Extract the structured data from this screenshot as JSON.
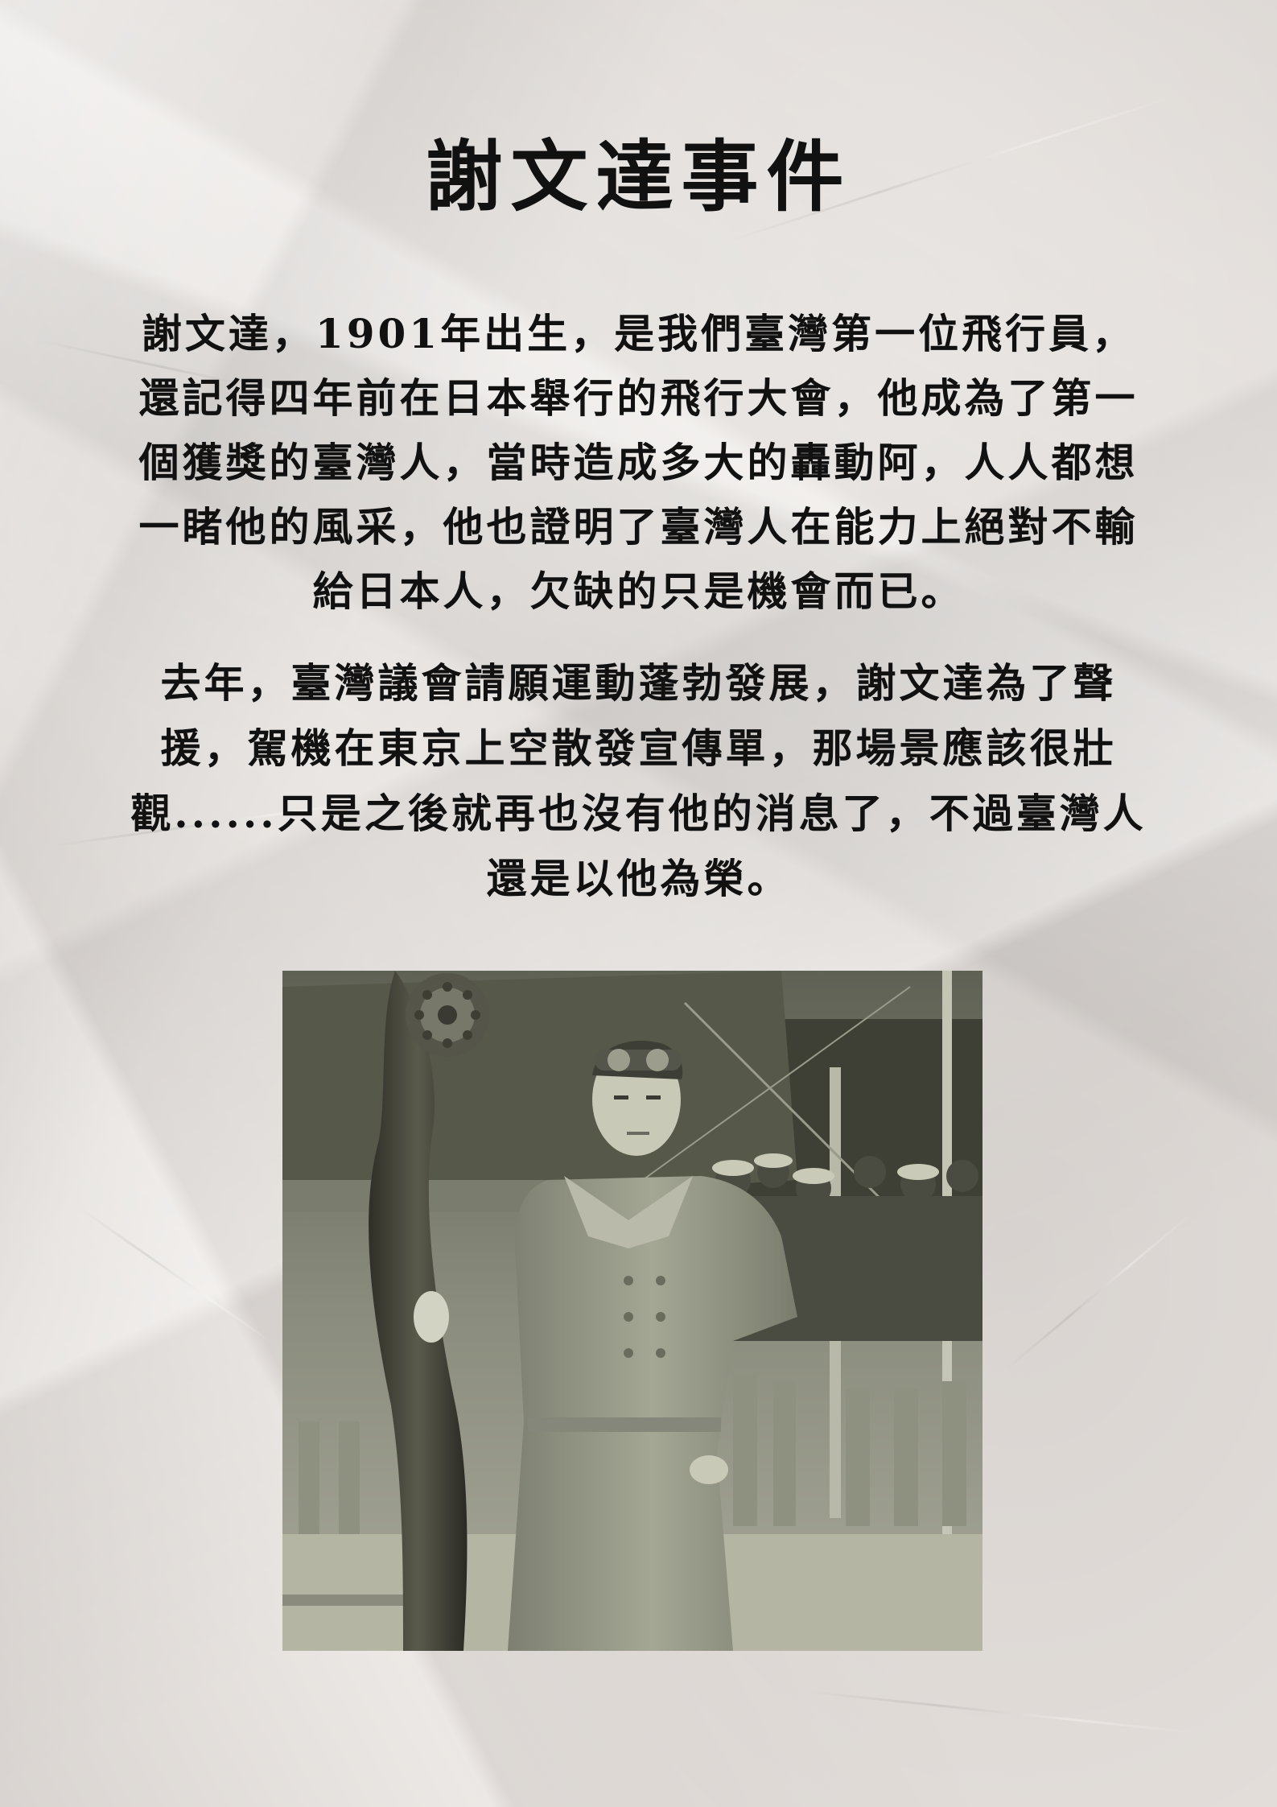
{
  "title": "謝文達事件",
  "paragraphs": [
    "謝文達，1901年出生，是我們臺灣第一位飛行員，還記得四年前在日本舉行的飛行大會，他成為了第一個獲獎的臺灣人，當時造成多大的轟動阿，人人都想一睹他的風采，他也證明了臺灣人在能力上絕對不輸給日本人，欠缺的只是機會而已。",
    "去年，臺灣議會請願運動蓬勃發展，謝文達為了聲援，駕機在東京上空散發宣傳單，那場景應該很壯觀......只是之後就再也沒有他的消息了，不過臺灣人還是以他為榮。"
  ],
  "photo": {
    "subject": "aviator-portrait-photo"
  }
}
